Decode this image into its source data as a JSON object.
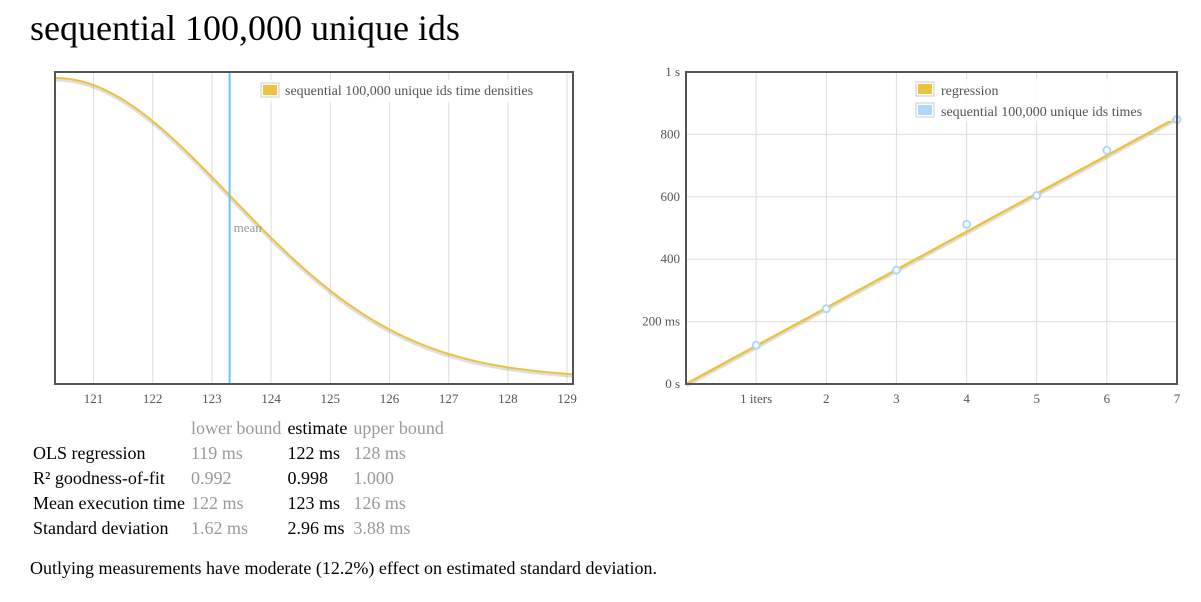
{
  "title": "sequential 100,000 unique ids",
  "density_legend": "sequential 100,000 unique ids time densities",
  "mean_label": "mean",
  "regression_legend": [
    "regression",
    "sequential 100,000 unique ids times"
  ],
  "colors": {
    "regression": "#edc240",
    "times": "#afd8f8",
    "mean_line": "#6ec4f0",
    "density": "#edc240"
  },
  "table": {
    "headers": [
      "",
      "lower bound",
      "estimate",
      "upper bound"
    ],
    "rows": [
      {
        "label": "OLS regression",
        "low": "119 ms",
        "est": "122 ms",
        "high": "128 ms"
      },
      {
        "label": "R² goodness-of-fit",
        "low": "0.992",
        "est": "0.998",
        "high": "1.000"
      },
      {
        "label": "Mean execution time",
        "low": "122 ms",
        "est": "123 ms",
        "high": "126 ms"
      },
      {
        "label": "Standard deviation",
        "low": "1.62 ms",
        "est": "2.96 ms",
        "high": "3.88 ms"
      }
    ]
  },
  "outlier_note": "Outlying measurements have moderate (12.2%) effect on estimated standard deviation.",
  "chart_data": [
    {
      "type": "area",
      "legend": "sequential 100,000 unique ids time densities",
      "xlim": [
        120.35,
        129.1
      ],
      "xticks": [
        "121",
        "122",
        "123",
        "124",
        "125",
        "126",
        "127",
        "128",
        "129"
      ],
      "mean": 123.3,
      "density": {
        "peak_x": 120.35,
        "peak_y": 1.0,
        "sigma": 2.96,
        "floor": 0.0
      },
      "legend_position": "top-right",
      "grid": true
    },
    {
      "type": "scatter",
      "xlim": [
        0,
        7
      ],
      "ylim": [
        0,
        1000
      ],
      "xticks": [
        "1 iters",
        "2",
        "3",
        "4",
        "5",
        "6",
        "7"
      ],
      "yticks": [
        "0 s",
        "200 ms",
        "400",
        "600",
        "800",
        "1 s"
      ],
      "series": [
        {
          "name": "regression",
          "type": "line",
          "x": [
            0,
            7
          ],
          "y": [
            0,
            854
          ]
        },
        {
          "name": "sequential 100,000 unique ids times",
          "type": "scatter",
          "x": [
            1,
            2,
            3,
            4,
            5,
            6,
            7
          ],
          "y": [
            124,
            241,
            365,
            512,
            604,
            749,
            848
          ]
        }
      ],
      "legend_position": "top-right",
      "grid": true
    }
  ]
}
